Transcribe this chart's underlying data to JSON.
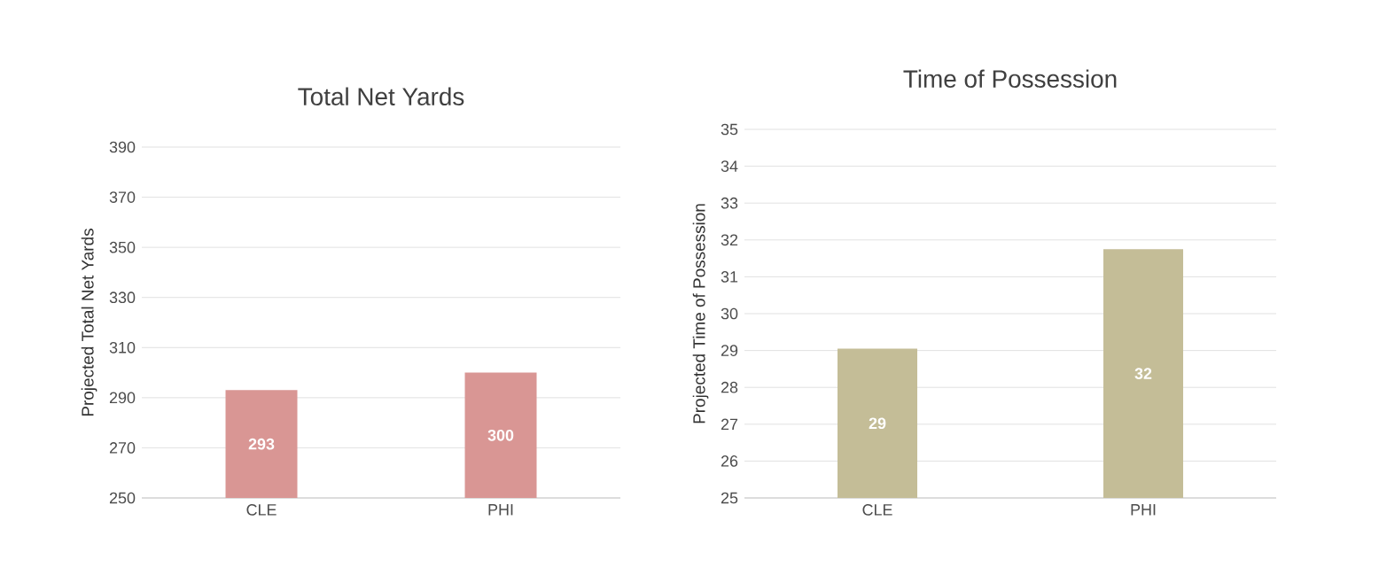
{
  "chart_data": [
    {
      "type": "bar",
      "title": "Total Net Yards",
      "ylabel": "Projected Total Net Yards",
      "categories": [
        "CLE",
        "PHI"
      ],
      "values": [
        293,
        300
      ],
      "color": "#d99694",
      "ylim": [
        250,
        390
      ],
      "yticks": [
        250,
        270,
        290,
        310,
        330,
        350,
        370,
        390
      ],
      "grid": "y",
      "data_labels": true
    },
    {
      "type": "bar",
      "title": "Time of Possession",
      "ylabel": "Projected Time of Possession",
      "categories": [
        "CLE",
        "PHI"
      ],
      "values": [
        29.05,
        31.75
      ],
      "value_labels": [
        "29",
        "32"
      ],
      "color": "#c4bd97",
      "ylim": [
        25,
        35
      ],
      "yticks": [
        25,
        26,
        27,
        28,
        29,
        30,
        31,
        32,
        33,
        34,
        35
      ],
      "grid": "y"
    }
  ]
}
